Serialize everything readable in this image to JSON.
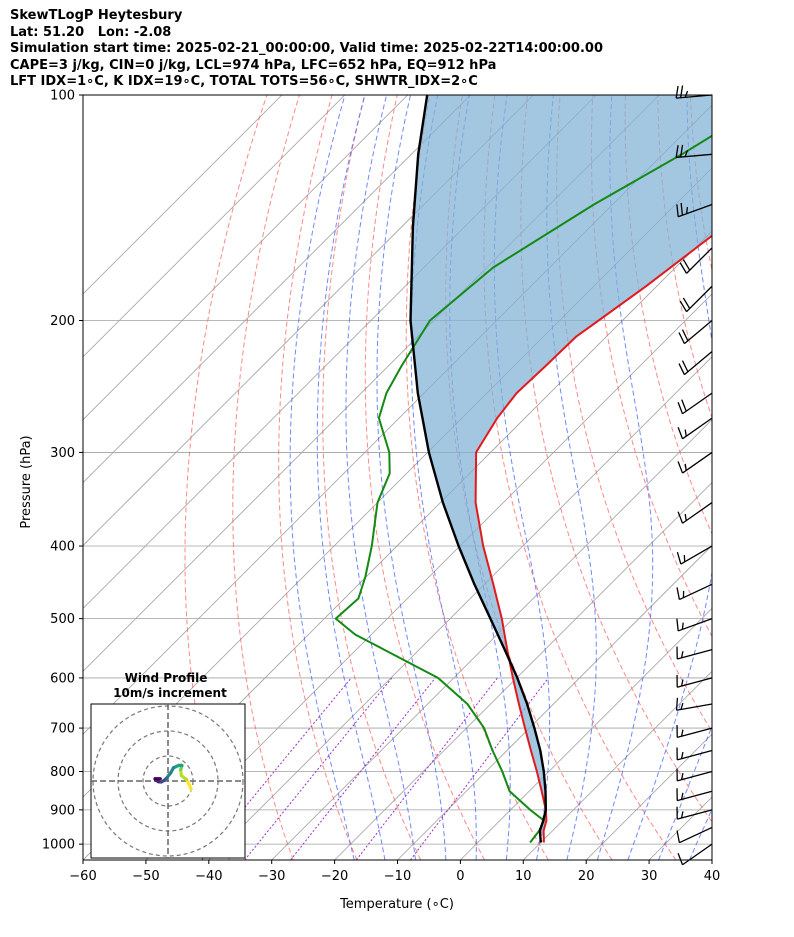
{
  "header": {
    "line1": "SkewTLogP Heytesbury",
    "line2": "Lat: 51.20   Lon: -2.08",
    "line3": "Simulation start time: 2025-02-21_00:00:00, Valid time: 2025-02-22T14:00:00.00",
    "line4": "CAPE=3 j/kg, CIN=0 j/kg, LCL=974 hPa, LFC=652 hPa, EQ=912 hPa",
    "line5": "LFT IDX=1∘C, K IDX=19∘C, TOTAL TOTS=56∘C, SHWTR_IDX=2∘C"
  },
  "colors": {
    "temperature": "#e31a1c",
    "dewpoint": "#138a13",
    "parcel": "#000000",
    "cape_fill": "#7fb2d6",
    "dry_adiabat": "#ff6060",
    "moist_adiabat": "#4060ff",
    "mixing_ratio": "#9b30c8",
    "isotherm": "#a0a0a0"
  },
  "chart_data": {
    "type": "line",
    "title": "",
    "xlabel": "Temperature (∘C)",
    "ylabel": "Pressure (hPa)",
    "xlim": [
      -60,
      40
    ],
    "ylim": [
      1050,
      100
    ],
    "y_scale": "log",
    "x_ticks": [
      "−60",
      "−50",
      "−40",
      "−30",
      "−20",
      "−10",
      "0",
      "10",
      "20",
      "30",
      "40"
    ],
    "y_ticks": [
      100,
      200,
      300,
      400,
      500,
      600,
      700,
      800,
      900,
      1000
    ],
    "skew": "45 degrees",
    "grid": true,
    "series": [
      {
        "key": "temperature",
        "p": [
          995,
          960,
          930,
          900,
          850,
          800,
          750,
          700,
          650,
          600,
          550,
          500,
          450,
          400,
          350,
          320,
          300,
          270,
          250,
          230,
          210,
          200,
          180,
          150,
          120,
          100
        ],
        "t": [
          10.5,
          8.6,
          7.4,
          5.6,
          2.0,
          -1.9,
          -6.2,
          -10.7,
          -15.5,
          -20.6,
          -26.0,
          -31.8,
          -38.6,
          -46.3,
          -54.4,
          -59.0,
          -62.3,
          -64.4,
          -65.3,
          -65.0,
          -64.8,
          -63.8,
          -61.7,
          -58.8,
          -56.7,
          -56.8
        ]
      },
      {
        "key": "dewpoint",
        "p": [
          995,
          960,
          930,
          900,
          850,
          800,
          750,
          700,
          650,
          600,
          550,
          525,
          500,
          470,
          440,
          400,
          350,
          320,
          300,
          270,
          250,
          230,
          200,
          170,
          140,
          120,
          100
        ],
        "t": [
          8.3,
          7.9,
          7.0,
          3.1,
          -3.1,
          -7.4,
          -12.3,
          -17.2,
          -23.7,
          -32.5,
          -45.6,
          -52.6,
          -58.2,
          -57.8,
          -60.1,
          -64.0,
          -70.0,
          -72.7,
          -76.1,
          -83.2,
          -86.0,
          -87.9,
          -90.6,
          -89.0,
          -83.0,
          -77.0,
          -71.0
        ]
      },
      {
        "key": "parcel",
        "p": [
          995,
          960,
          930,
          900,
          850,
          800,
          750,
          700,
          650,
          600,
          550,
          500,
          450,
          400,
          350,
          300,
          250,
          200,
          150,
          120,
          100
        ],
        "t": [
          10.0,
          8.0,
          6.9,
          5.6,
          2.6,
          -0.8,
          -4.7,
          -9.2,
          -14.2,
          -19.9,
          -26.4,
          -33.6,
          -41.6,
          -50.2,
          -59.6,
          -69.8,
          -81.0,
          -93.7,
          -108.2,
          -118.9,
          -126.9
        ]
      }
    ],
    "wind_barbs": {
      "p": [
        1000,
        950,
        900,
        850,
        800,
        750,
        700,
        650,
        600,
        550,
        500,
        450,
        400,
        350,
        300,
        270,
        250,
        220,
        200,
        180,
        160,
        140,
        120,
        100
      ],
      "speed_kt": [
        10,
        10,
        15,
        15,
        15,
        15,
        15,
        15,
        15,
        15,
        15,
        15,
        15,
        15,
        15,
        15,
        20,
        20,
        20,
        20,
        20,
        25,
        25,
        25
      ],
      "direction_deg": [
        235,
        245,
        255,
        255,
        255,
        255,
        255,
        260,
        255,
        255,
        250,
        245,
        240,
        235,
        235,
        235,
        235,
        230,
        230,
        225,
        225,
        250,
        265,
        265
      ]
    },
    "hodograph": {
      "title_line1": "Wind Profile",
      "title_line2": "10m/s increment",
      "u": [
        9.2,
        8.5,
        7.4,
        5.3,
        5.1,
        5.4,
        5.6,
        5.4,
        4.2,
        2.2,
        1.1,
        -0.6,
        -1.6,
        -2.7,
        -3.8,
        -4.9,
        -5.2,
        -3.1
      ],
      "v": [
        -3.3,
        -1.5,
        0.6,
        2.2,
        4.6,
        5.6,
        6.2,
        6.3,
        6.2,
        5.3,
        3.3,
        1.1,
        0.2,
        -0.4,
        -0.3,
        0.3,
        0.9,
        0.9
      ]
    }
  }
}
